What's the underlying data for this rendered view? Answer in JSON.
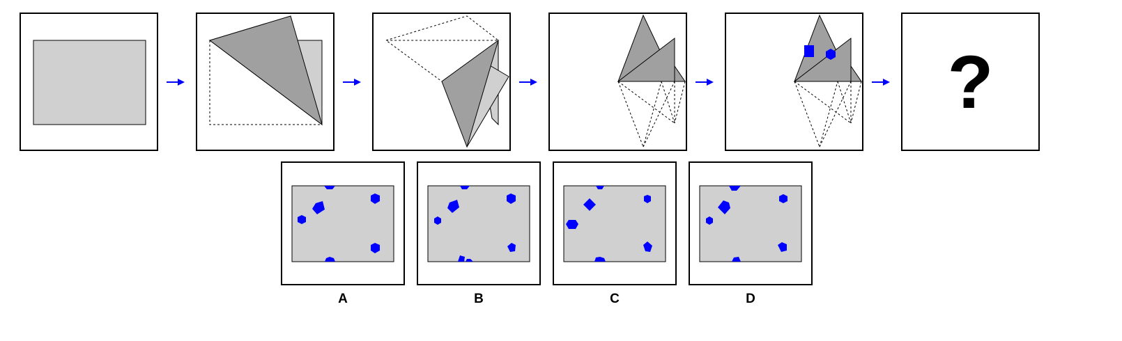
{
  "colors": {
    "paper": "#d0d0d0",
    "fold": "#a0a0a0",
    "hole": "#0000ff",
    "arrow": "#0000ff",
    "outline": "#000000"
  },
  "question_mark": "?",
  "options": [
    {
      "label": "A"
    },
    {
      "label": "B"
    },
    {
      "label": "C"
    },
    {
      "label": "D"
    }
  ]
}
